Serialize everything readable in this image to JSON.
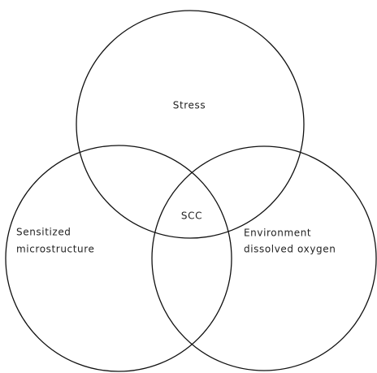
{
  "sets": [
    {
      "label": [
        "Stress"
      ]
    },
    {
      "label": [
        "Sensitized",
        "microstructure"
      ]
    },
    {
      "label": [
        "Environment",
        "dissolved oxygen"
      ]
    }
  ],
  "intersection": "SCC"
}
